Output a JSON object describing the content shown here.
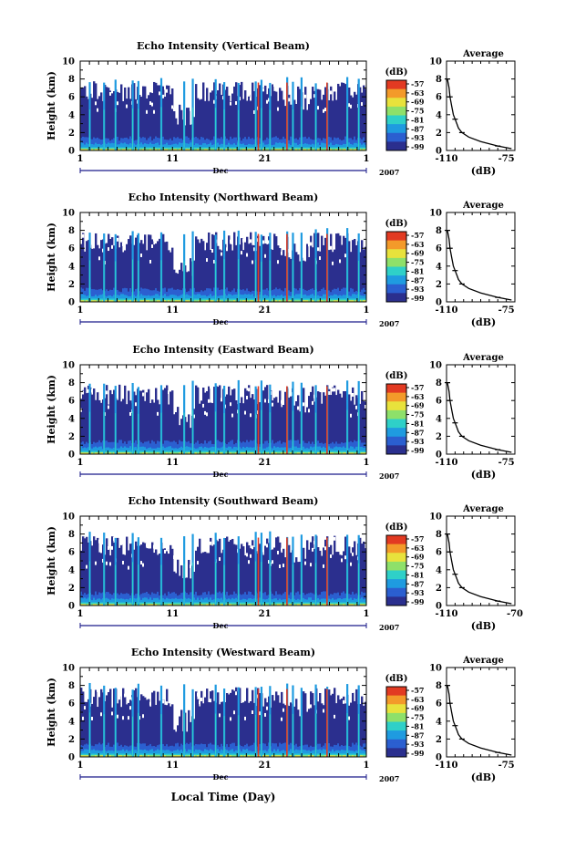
{
  "figure": {
    "xlabel_bottom": "Local Time (Day)",
    "month_label": "Dec",
    "year_label": "2007",
    "colorbar_unit": "(dB)",
    "colorbar_ticks": [
      "-57",
      "-63",
      "-69",
      "-75",
      "-81",
      "-87",
      "-93",
      "-99"
    ],
    "avg_title": "Average",
    "avg_xlabel": "(dB)",
    "ylabel": "Height (km)"
  },
  "colors": {
    "colormap": [
      "#2b2f8e",
      "#2b5fd0",
      "#1f9be0",
      "#2fd0c8",
      "#8ee06a",
      "#e8e23c",
      "#f39a2a",
      "#e23a22"
    ],
    "background": "#ffffff",
    "axis": "#000000"
  },
  "chart_data": [
    {
      "type": "heatmap",
      "title": "Echo Intensity (Vertical Beam)",
      "xlabel": "Dec",
      "ylabel": "Height (km)",
      "xlim": [
        1,
        32
      ],
      "ylim": [
        0,
        10
      ],
      "x_ticks": [
        "1",
        "11",
        "21",
        "1"
      ],
      "y_ticks": [
        "0",
        "2",
        "4",
        "6",
        "8",
        "10"
      ],
      "colorbar": {
        "unit": "(dB)",
        "ticks": [
          -57,
          -63,
          -69,
          -75,
          -81,
          -87,
          -93,
          -99
        ]
      },
      "average_profile": {
        "title": "Average",
        "xlabel": "(dB)",
        "x_ticks": [
          "-110",
          "-75"
        ],
        "xlim": [
          -110,
          -70
        ],
        "ylim": [
          0,
          10
        ],
        "heights": [
          0.2,
          0.5,
          1,
          1.5,
          2,
          2.5,
          3,
          3.5,
          4,
          5,
          6,
          7,
          7.5,
          8
        ],
        "db": [
          -72,
          -80,
          -90,
          -97,
          -101,
          -103,
          -104,
          -105,
          -106,
          -107,
          -108,
          -108.5,
          -109,
          -109.5
        ]
      }
    },
    {
      "type": "heatmap",
      "title": "Echo Intensity (Northward Beam)",
      "xlabel": "Dec",
      "ylabel": "Height (km)",
      "xlim": [
        1,
        32
      ],
      "ylim": [
        0,
        10
      ],
      "x_ticks": [
        "1",
        "11",
        "21",
        "1"
      ],
      "y_ticks": [
        "0",
        "2",
        "4",
        "6",
        "8",
        "10"
      ],
      "colorbar": {
        "unit": "(dB)",
        "ticks": [
          -57,
          -63,
          -69,
          -75,
          -81,
          -87,
          -93,
          -99
        ]
      },
      "average_profile": {
        "title": "Average",
        "xlabel": "(dB)",
        "x_ticks": [
          "-110",
          "-75"
        ],
        "xlim": [
          -110,
          -70
        ],
        "ylim": [
          0,
          10
        ],
        "heights": [
          0.2,
          0.5,
          1,
          1.5,
          2,
          2.5,
          3,
          3.5,
          4,
          5,
          6,
          7,
          7.5,
          8
        ],
        "db": [
          -72,
          -80,
          -90,
          -97,
          -101,
          -103,
          -104,
          -105,
          -106,
          -107,
          -108,
          -108.5,
          -109,
          -109.5
        ]
      }
    },
    {
      "type": "heatmap",
      "title": "Echo Intensity (Eastward Beam)",
      "xlabel": "Dec",
      "ylabel": "Height (km)",
      "xlim": [
        1,
        32
      ],
      "ylim": [
        0,
        10
      ],
      "x_ticks": [
        "1",
        "11",
        "21",
        "1"
      ],
      "y_ticks": [
        "0",
        "2",
        "4",
        "6",
        "8",
        "10"
      ],
      "colorbar": {
        "unit": "(dB)",
        "ticks": [
          -57,
          -63,
          -69,
          -75,
          -81,
          -87,
          -93,
          -99
        ]
      },
      "average_profile": {
        "title": "Average",
        "xlabel": "(dB)",
        "x_ticks": [
          "-110",
          "-75"
        ],
        "xlim": [
          -110,
          -70
        ],
        "ylim": [
          0,
          10
        ],
        "heights": [
          0.2,
          0.5,
          1,
          1.5,
          2,
          2.5,
          3,
          3.5,
          4,
          5,
          6,
          7,
          7.5,
          8
        ],
        "db": [
          -72,
          -80,
          -90,
          -97,
          -101,
          -103,
          -104,
          -105,
          -106,
          -107,
          -108,
          -108.5,
          -109,
          -109.5
        ]
      }
    },
    {
      "type": "heatmap",
      "title": "Echo Intensity (Southward Beam)",
      "xlabel": "Dec",
      "ylabel": "Height (km)",
      "xlim": [
        1,
        32
      ],
      "ylim": [
        0,
        10
      ],
      "x_ticks": [
        "1",
        "11",
        "21",
        "1"
      ],
      "y_ticks": [
        "0",
        "2",
        "4",
        "6",
        "8",
        "10"
      ],
      "colorbar": {
        "unit": "(dB)",
        "ticks": [
          -57,
          -63,
          -69,
          -75,
          -81,
          -87,
          -93,
          -99
        ]
      },
      "average_profile": {
        "title": "Average",
        "xlabel": "(dB)",
        "x_ticks": [
          "-110",
          "-70"
        ],
        "xlim": [
          -110,
          -70
        ],
        "ylim": [
          0,
          10
        ],
        "heights": [
          0.2,
          0.5,
          1,
          1.5,
          2,
          2.5,
          3,
          3.5,
          4,
          5,
          6,
          7,
          7.5,
          8
        ],
        "db": [
          -72,
          -80,
          -90,
          -97,
          -101,
          -103,
          -104,
          -105,
          -106,
          -107,
          -108,
          -108.5,
          -109,
          -109.5
        ]
      }
    },
    {
      "type": "heatmap",
      "title": "Echo Intensity (Westward Beam)",
      "xlabel": "Dec",
      "ylabel": "Height (km)",
      "xlim": [
        1,
        32
      ],
      "ylim": [
        0,
        10
      ],
      "x_ticks": [
        "1",
        "11",
        "21",
        "1"
      ],
      "y_ticks": [
        "0",
        "2",
        "4",
        "6",
        "8",
        "10"
      ],
      "colorbar": {
        "unit": "(dB)",
        "ticks": [
          -57,
          -63,
          -69,
          -75,
          -81,
          -87,
          -93,
          -99
        ]
      },
      "average_profile": {
        "title": "Average",
        "xlabel": "(dB)",
        "x_ticks": [
          "-110",
          "-75"
        ],
        "xlim": [
          -110,
          -70
        ],
        "ylim": [
          0,
          10
        ],
        "heights": [
          0.2,
          0.5,
          1,
          1.5,
          2,
          2.5,
          3,
          3.5,
          4,
          5,
          6,
          7,
          7.5,
          8
        ],
        "db": [
          -72,
          -80,
          -90,
          -97,
          -101,
          -103,
          -104,
          -105,
          -106,
          -107,
          -108,
          -108.5,
          -109,
          -109.5
        ]
      }
    }
  ]
}
